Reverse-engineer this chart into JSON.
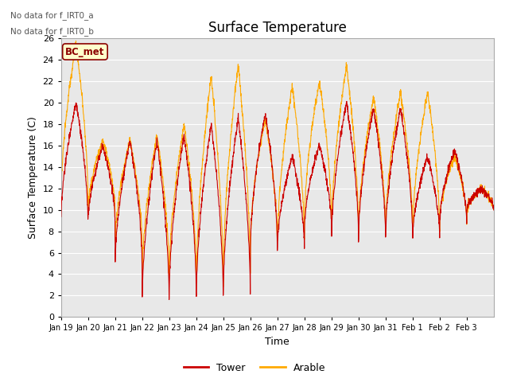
{
  "title": "Surface Temperature",
  "ylabel": "Surface Temperature (C)",
  "xlabel": "Time",
  "ylim": [
    0,
    26
  ],
  "yticks": [
    0,
    2,
    4,
    6,
    8,
    10,
    12,
    14,
    16,
    18,
    20,
    22,
    24,
    26
  ],
  "xtick_labels": [
    "Jan 19",
    "Jan 20",
    "Jan 21",
    "Jan 22",
    "Jan 23",
    "Jan 24",
    "Jan 25",
    "Jan 26",
    "Jan 27",
    "Jan 28",
    "Jan 29",
    "Jan 30",
    "Jan 31",
    "Feb 1",
    "Feb 2",
    "Feb 3"
  ],
  "tower_color": "#cc0000",
  "arable_color": "#ffaa00",
  "legend_entries": [
    "Tower",
    "Arable"
  ],
  "annotations": [
    "No data for f_IRT0_a",
    "No data for f_IRT0_b"
  ],
  "bc_met_label": "BC_met",
  "background_color": "#ffffff",
  "plot_bg_color": "#e8e8e8",
  "grid_color": "#ffffff",
  "title_fontsize": 12,
  "axis_fontsize": 9,
  "tick_fontsize": 8,
  "n_days": 16,
  "day_mins_tower": [
    9,
    9,
    5,
    1.7,
    2.5,
    2,
    2.5,
    6.5,
    6.5,
    8.5,
    7.5,
    7.5,
    7.5,
    7.5,
    9,
    10
  ],
  "day_maxs_tower": [
    20,
    16,
    16.5,
    16.5,
    17,
    18,
    18.5,
    19,
    15,
    16,
    20,
    19.5,
    19.5,
    15,
    15.5,
    12
  ],
  "day_mins_arable": [
    11,
    10,
    7,
    4,
    4,
    3,
    4,
    7,
    7,
    9,
    8,
    8,
    8,
    8,
    9,
    10
  ],
  "day_maxs_arable": [
    25.5,
    16.5,
    16.5,
    17,
    18,
    22.5,
    23.5,
    18.5,
    21.5,
    22,
    23.5,
    20.5,
    21,
    21,
    15,
    12
  ]
}
